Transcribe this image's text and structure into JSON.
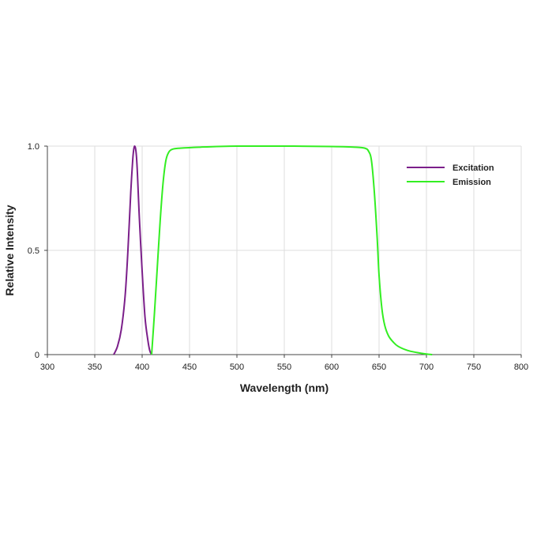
{
  "chart_data": {
    "type": "line",
    "xlabel": "Wavelength (nm)",
    "ylabel": "Relative Intensity",
    "xlim": [
      300,
      800
    ],
    "ylim": [
      0,
      1
    ],
    "x_ticks": [
      "300",
      "350",
      "400",
      "450",
      "500",
      "550",
      "600",
      "650",
      "700",
      "750",
      "800"
    ],
    "y_ticks": [
      "0",
      "0.5",
      "1.0"
    ],
    "grid": true,
    "legend_position": "top-right",
    "series": [
      {
        "name": "Excitation",
        "color": "#7b1f8a",
        "points": [
          [
            370,
            0
          ],
          [
            374,
            0.04
          ],
          [
            378,
            0.12
          ],
          [
            382,
            0.28
          ],
          [
            385,
            0.5
          ],
          [
            388,
            0.78
          ],
          [
            390,
            0.93
          ],
          [
            391,
            0.98
          ],
          [
            392,
            1.0
          ],
          [
            393,
            0.99
          ],
          [
            394,
            0.95
          ],
          [
            395,
            0.87
          ],
          [
            397,
            0.66
          ],
          [
            400,
            0.4
          ],
          [
            403,
            0.18
          ],
          [
            406,
            0.07
          ],
          [
            408,
            0.02
          ],
          [
            410,
            0
          ]
        ]
      },
      {
        "name": "Emission",
        "color": "#33ee22",
        "points": [
          [
            410,
            0
          ],
          [
            413,
            0.2
          ],
          [
            416,
            0.42
          ],
          [
            419,
            0.64
          ],
          [
            422,
            0.82
          ],
          [
            425,
            0.93
          ],
          [
            428,
            0.97
          ],
          [
            432,
            0.985
          ],
          [
            440,
            0.99
          ],
          [
            460,
            0.995
          ],
          [
            500,
            1.0
          ],
          [
            560,
            1.0
          ],
          [
            600,
            0.998
          ],
          [
            625,
            0.995
          ],
          [
            635,
            0.99
          ],
          [
            639,
            0.975
          ],
          [
            642,
            0.93
          ],
          [
            645,
            0.78
          ],
          [
            648,
            0.56
          ],
          [
            650,
            0.38
          ],
          [
            653,
            0.22
          ],
          [
            656,
            0.14
          ],
          [
            660,
            0.09
          ],
          [
            665,
            0.06
          ],
          [
            670,
            0.04
          ],
          [
            680,
            0.02
          ],
          [
            690,
            0.01
          ],
          [
            700,
            0.003
          ],
          [
            706,
            0
          ]
        ]
      }
    ]
  }
}
